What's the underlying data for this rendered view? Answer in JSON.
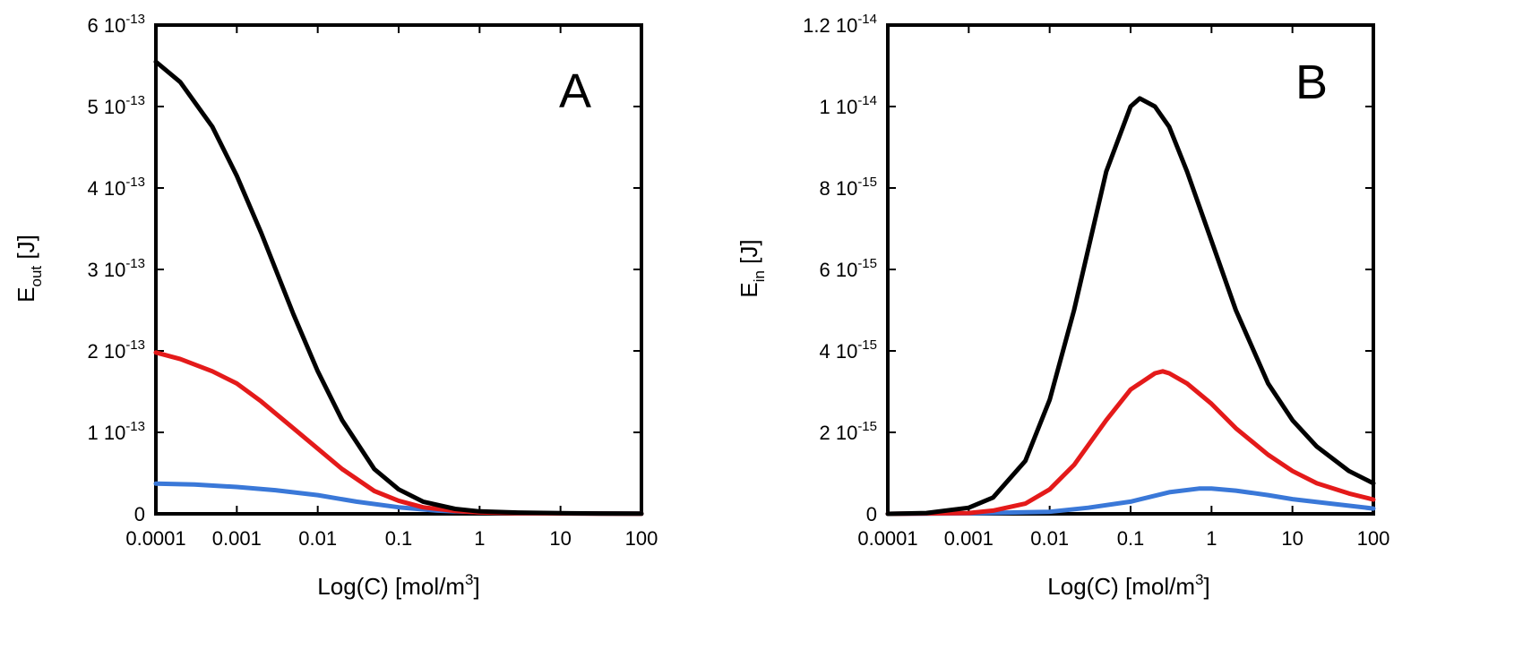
{
  "chart_data": [
    {
      "type": "line",
      "panel": "A",
      "xscale": "log",
      "xlim": [
        0.0001,
        100
      ],
      "ylim": [
        0,
        6e-13
      ],
      "x_ticks": [
        0.0001,
        0.001,
        0.01,
        0.1,
        1,
        10,
        100
      ],
      "x_tick_labels": [
        "0.0001",
        "0.001",
        "0.01",
        "0.1",
        "1",
        "10",
        "100"
      ],
      "y_ticks": [
        {
          "value": 0,
          "mantissa": "0",
          "exp": ""
        },
        {
          "value": 1e-13,
          "mantissa": "1 10",
          "exp": "-13"
        },
        {
          "value": 2e-13,
          "mantissa": "2 10",
          "exp": "-13"
        },
        {
          "value": 3e-13,
          "mantissa": "3 10",
          "exp": "-13"
        },
        {
          "value": 4e-13,
          "mantissa": "4 10",
          "exp": "-13"
        },
        {
          "value": 5e-13,
          "mantissa": "5 10",
          "exp": "-13"
        },
        {
          "value": 6e-13,
          "mantissa": "6 10",
          "exp": "-13"
        }
      ],
      "xlabel": {
        "main": "Log(C) [mol/m",
        "sup": "3",
        "end": "]"
      },
      "ylabel": {
        "main": "E",
        "sub": "out",
        "end": " [J]"
      },
      "series": [
        {
          "name": "black",
          "color": "#000000",
          "x": [
            0.0001,
            0.0002,
            0.0005,
            0.001,
            0.002,
            0.005,
            0.01,
            0.02,
            0.05,
            0.1,
            0.2,
            0.5,
            1,
            3,
            10,
            30,
            100
          ],
          "y": [
            5.55e-13,
            5.3e-13,
            4.75e-13,
            4.15e-13,
            3.45e-13,
            2.45e-13,
            1.75e-13,
            1.15e-13,
            5.5e-14,
            3e-14,
            1.5e-14,
            6e-15,
            3e-15,
            1.5e-15,
            8e-16,
            4e-16,
            2e-16
          ]
        },
        {
          "name": "red",
          "color": "#e41a1a",
          "x": [
            0.0001,
            0.0002,
            0.0005,
            0.001,
            0.002,
            0.005,
            0.01,
            0.02,
            0.05,
            0.1,
            0.2,
            0.5,
            1,
            3,
            10,
            30,
            100
          ],
          "y": [
            1.98e-13,
            1.9e-13,
            1.75e-13,
            1.6e-13,
            1.38e-13,
            1.05e-13,
            8e-14,
            5.5e-14,
            2.8e-14,
            1.6e-14,
            8e-15,
            3.5e-15,
            1.8e-15,
            8e-16,
            4e-16,
            2e-16,
            1e-16
          ]
        },
        {
          "name": "blue",
          "color": "#3a78d8",
          "x": [
            0.0001,
            0.0003,
            0.001,
            0.003,
            0.01,
            0.03,
            0.1,
            0.3,
            1,
            3,
            10,
            100
          ],
          "y": [
            3.7e-14,
            3.6e-14,
            3.3e-14,
            2.9e-14,
            2.3e-14,
            1.5e-14,
            8e-15,
            4e-15,
            2e-15,
            1e-15,
            5e-16,
            1e-16
          ]
        }
      ]
    },
    {
      "type": "line",
      "panel": "B",
      "xscale": "log",
      "xlim": [
        0.0001,
        100
      ],
      "ylim": [
        0,
        1.2e-14
      ],
      "x_ticks": [
        0.0001,
        0.001,
        0.01,
        0.1,
        1,
        10,
        100
      ],
      "x_tick_labels": [
        "0.0001",
        "0.001",
        "0.01",
        "0.1",
        "1",
        "10",
        "100"
      ],
      "y_ticks": [
        {
          "value": 0,
          "mantissa": "0",
          "exp": ""
        },
        {
          "value": 2e-15,
          "mantissa": "2 10",
          "exp": "-15"
        },
        {
          "value": 4e-15,
          "mantissa": "4 10",
          "exp": "-15"
        },
        {
          "value": 6e-15,
          "mantissa": "6 10",
          "exp": "-15"
        },
        {
          "value": 8e-15,
          "mantissa": "8 10",
          "exp": "-15"
        },
        {
          "value": 1e-14,
          "mantissa": "1 10",
          "exp": "-14"
        },
        {
          "value": 1.2e-14,
          "mantissa": "1.2 10",
          "exp": "-14"
        }
      ],
      "xlabel": {
        "main": "Log(C) [mol/m",
        "sup": "3",
        "end": "]"
      },
      "ylabel": {
        "main": "E",
        "sub": "in",
        "end": " [J]"
      },
      "series": [
        {
          "name": "black",
          "color": "#000000",
          "x": [
            0.0001,
            0.0003,
            0.001,
            0.002,
            0.005,
            0.01,
            0.02,
            0.05,
            0.1,
            0.13,
            0.2,
            0.3,
            0.5,
            1,
            2,
            5,
            10,
            20,
            50,
            100
          ],
          "y": [
            0,
            2e-17,
            1.5e-16,
            4e-16,
            1.3e-15,
            2.8e-15,
            5e-15,
            8.4e-15,
            1e-14,
            1.02e-14,
            1e-14,
            9.5e-15,
            8.4e-15,
            6.7e-15,
            5e-15,
            3.2e-15,
            2.3e-15,
            1.65e-15,
            1.05e-15,
            7.5e-16
          ]
        },
        {
          "name": "red",
          "color": "#e41a1a",
          "x": [
            0.0001,
            0.001,
            0.002,
            0.005,
            0.01,
            0.02,
            0.05,
            0.1,
            0.2,
            0.25,
            0.3,
            0.5,
            1,
            2,
            5,
            10,
            20,
            50,
            100
          ],
          "y": [
            0,
            2e-17,
            8e-17,
            2.5e-16,
            6e-16,
            1.2e-15,
            2.3e-15,
            3.05e-15,
            3.45e-15,
            3.5e-15,
            3.45e-15,
            3.2e-15,
            2.7e-15,
            2.1e-15,
            1.45e-15,
            1.05e-15,
            7.5e-16,
            5e-16,
            3.5e-16
          ]
        },
        {
          "name": "blue",
          "color": "#3a78d8",
          "x": [
            0.0001,
            0.001,
            0.01,
            0.03,
            0.1,
            0.3,
            0.7,
            1,
            2,
            5,
            10,
            30,
            100
          ],
          "y": [
            0,
            1e-17,
            5e-17,
            1.5e-16,
            3e-16,
            5.3e-16,
            6.2e-16,
            6.2e-16,
            5.7e-16,
            4.6e-16,
            3.6e-16,
            2.5e-16,
            1.3e-16
          ]
        }
      ]
    }
  ]
}
